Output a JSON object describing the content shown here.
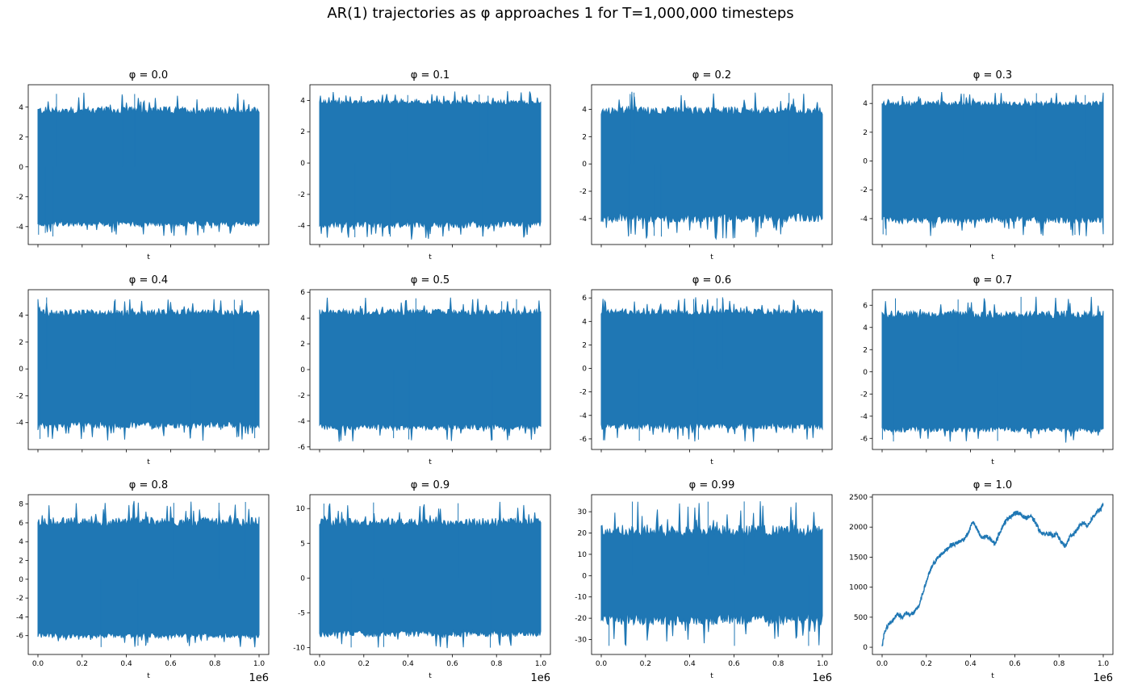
{
  "title": "AR(1) trajectories as φ approaches 1 for T=1,000,000 timesteps",
  "chart_data": {
    "type": "line",
    "layout": "grid 3x4, shared x-axis",
    "series_color": "#1f77b4",
    "x_range": [
      0,
      1000000
    ],
    "x_tick_values": [
      0.0,
      0.2,
      0.4,
      0.6,
      0.8,
      1.0
    ],
    "x_tick_labels": [
      "0.0",
      "0.2",
      "0.4",
      "0.6",
      "0.8",
      "1.0"
    ],
    "x_offset_label": "1e6",
    "xlabel": "t",
    "panels": [
      {
        "title": "φ = 0.0",
        "phi": 0.0,
        "ylim": [
          -5.2,
          5.5
        ],
        "yticks": [
          -4,
          -2,
          0,
          2,
          4
        ],
        "band": [
          -3.6,
          3.5
        ],
        "extremes": [
          -4.7,
          5.0
        ]
      },
      {
        "title": "φ = 0.1",
        "phi": 0.1,
        "ylim": [
          -5.2,
          5.0
        ],
        "yticks": [
          -4,
          -2,
          0,
          2,
          4
        ],
        "band": [
          -3.7,
          3.7
        ],
        "extremes": [
          -4.9,
          4.6
        ]
      },
      {
        "title": "φ = 0.2",
        "phi": 0.2,
        "ylim": [
          -5.9,
          5.8
        ],
        "yticks": [
          -4,
          -2,
          0,
          2,
          4
        ],
        "band": [
          -3.6,
          3.6
        ],
        "extremes": [
          -5.5,
          5.3
        ]
      },
      {
        "title": "φ = 0.3",
        "phi": 0.3,
        "ylim": [
          -5.8,
          5.3
        ],
        "yticks": [
          -4,
          -2,
          0,
          2,
          4
        ],
        "band": [
          -3.8,
          3.8
        ],
        "extremes": [
          -5.3,
          4.8
        ]
      },
      {
        "title": "φ = 0.4",
        "phi": 0.4,
        "ylim": [
          -6.0,
          5.9
        ],
        "yticks": [
          -4,
          -2,
          0,
          2,
          4
        ],
        "band": [
          -3.9,
          3.9
        ],
        "extremes": [
          -5.4,
          5.4
        ]
      },
      {
        "title": "φ = 0.5",
        "phi": 0.5,
        "ylim": [
          -6.2,
          6.2
        ],
        "yticks": [
          -6,
          -4,
          -2,
          0,
          2,
          4,
          6
        ],
        "band": [
          -4.2,
          4.2
        ],
        "extremes": [
          -5.6,
          5.6
        ]
      },
      {
        "title": "φ = 0.6",
        "phi": 0.6,
        "ylim": [
          -6.9,
          6.7
        ],
        "yticks": [
          -6,
          -4,
          -2,
          0,
          2,
          4,
          6
        ],
        "band": [
          -4.6,
          4.5
        ],
        "extremes": [
          -6.3,
          6.1
        ]
      },
      {
        "title": "φ = 0.7",
        "phi": 0.7,
        "ylim": [
          -7.0,
          7.4
        ],
        "yticks": [
          -6,
          -4,
          -2,
          0,
          2,
          4,
          6
        ],
        "band": [
          -4.9,
          4.8
        ],
        "extremes": [
          -6.4,
          6.8
        ]
      },
      {
        "title": "φ = 0.8",
        "phi": 0.8,
        "ylim": [
          -8.0,
          9.0
        ],
        "yticks": [
          -6,
          -4,
          -2,
          0,
          2,
          4,
          6,
          8
        ],
        "band": [
          -5.7,
          5.6
        ],
        "extremes": [
          -7.3,
          8.4
        ]
      },
      {
        "title": "φ = 0.9",
        "phi": 0.9,
        "ylim": [
          -11.0,
          12.0
        ],
        "yticks": [
          -10,
          -5,
          0,
          5,
          10
        ],
        "band": [
          -7.5,
          7.4
        ],
        "extremes": [
          -10.2,
          11.0
        ]
      },
      {
        "title": "φ = 0.99",
        "phi": 0.99,
        "ylim": [
          -37,
          38
        ],
        "yticks": [
          -30,
          -20,
          -10,
          0,
          10,
          20,
          30
        ],
        "band": [
          -18,
          18
        ],
        "extremes": [
          -33,
          35
        ]
      },
      {
        "title": "φ = 1.0",
        "phi": 1.0,
        "ylim": [
          -120,
          2540
        ],
        "yticks": [
          0,
          500,
          1000,
          1500,
          2000,
          2500
        ],
        "walk_x": [
          0,
          0.01,
          0.03,
          0.05,
          0.07,
          0.09,
          0.11,
          0.13,
          0.15,
          0.17,
          0.19,
          0.21,
          0.23,
          0.25,
          0.27,
          0.29,
          0.31,
          0.33,
          0.35,
          0.37,
          0.39,
          0.41,
          0.43,
          0.45,
          0.47,
          0.49,
          0.51,
          0.53,
          0.55,
          0.57,
          0.59,
          0.61,
          0.63,
          0.65,
          0.67,
          0.69,
          0.71,
          0.73,
          0.75,
          0.77,
          0.79,
          0.81,
          0.83,
          0.85,
          0.87,
          0.89,
          0.91,
          0.93,
          0.95,
          0.97,
          0.99,
          1.0
        ],
        "walk_y": [
          0,
          250,
          380,
          460,
          560,
          500,
          570,
          540,
          600,
          720,
          980,
          1200,
          1380,
          1480,
          1560,
          1620,
          1700,
          1720,
          1760,
          1800,
          1900,
          2100,
          1950,
          1820,
          1850,
          1800,
          1720,
          1900,
          2050,
          2150,
          2200,
          2250,
          2200,
          2150,
          2180,
          2100,
          1950,
          1880,
          1900,
          1860,
          1880,
          1750,
          1680,
          1850,
          1900,
          2000,
          2080,
          2020,
          2150,
          2250,
          2300,
          2400
        ]
      }
    ]
  }
}
